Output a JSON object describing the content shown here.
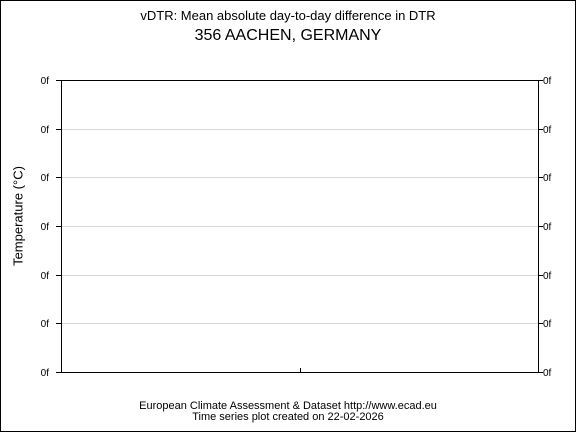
{
  "chart_data": {
    "type": "line",
    "title": "vDTR: Mean absolute day-to-day difference in DTR",
    "subtitle": "356 AACHEN, GERMANY",
    "ylabel": "Temperature (°C)",
    "xlabel": "",
    "y_tick_labels": [
      "0f",
      "0f",
      "0f",
      "0f",
      "0f",
      "0f",
      "0f"
    ],
    "series": [],
    "grid": true
  },
  "footer": {
    "line1": "European Climate Assessment & Dataset  http://www.ecad.eu",
    "line2": "Time series plot created on 22-02-2026"
  }
}
